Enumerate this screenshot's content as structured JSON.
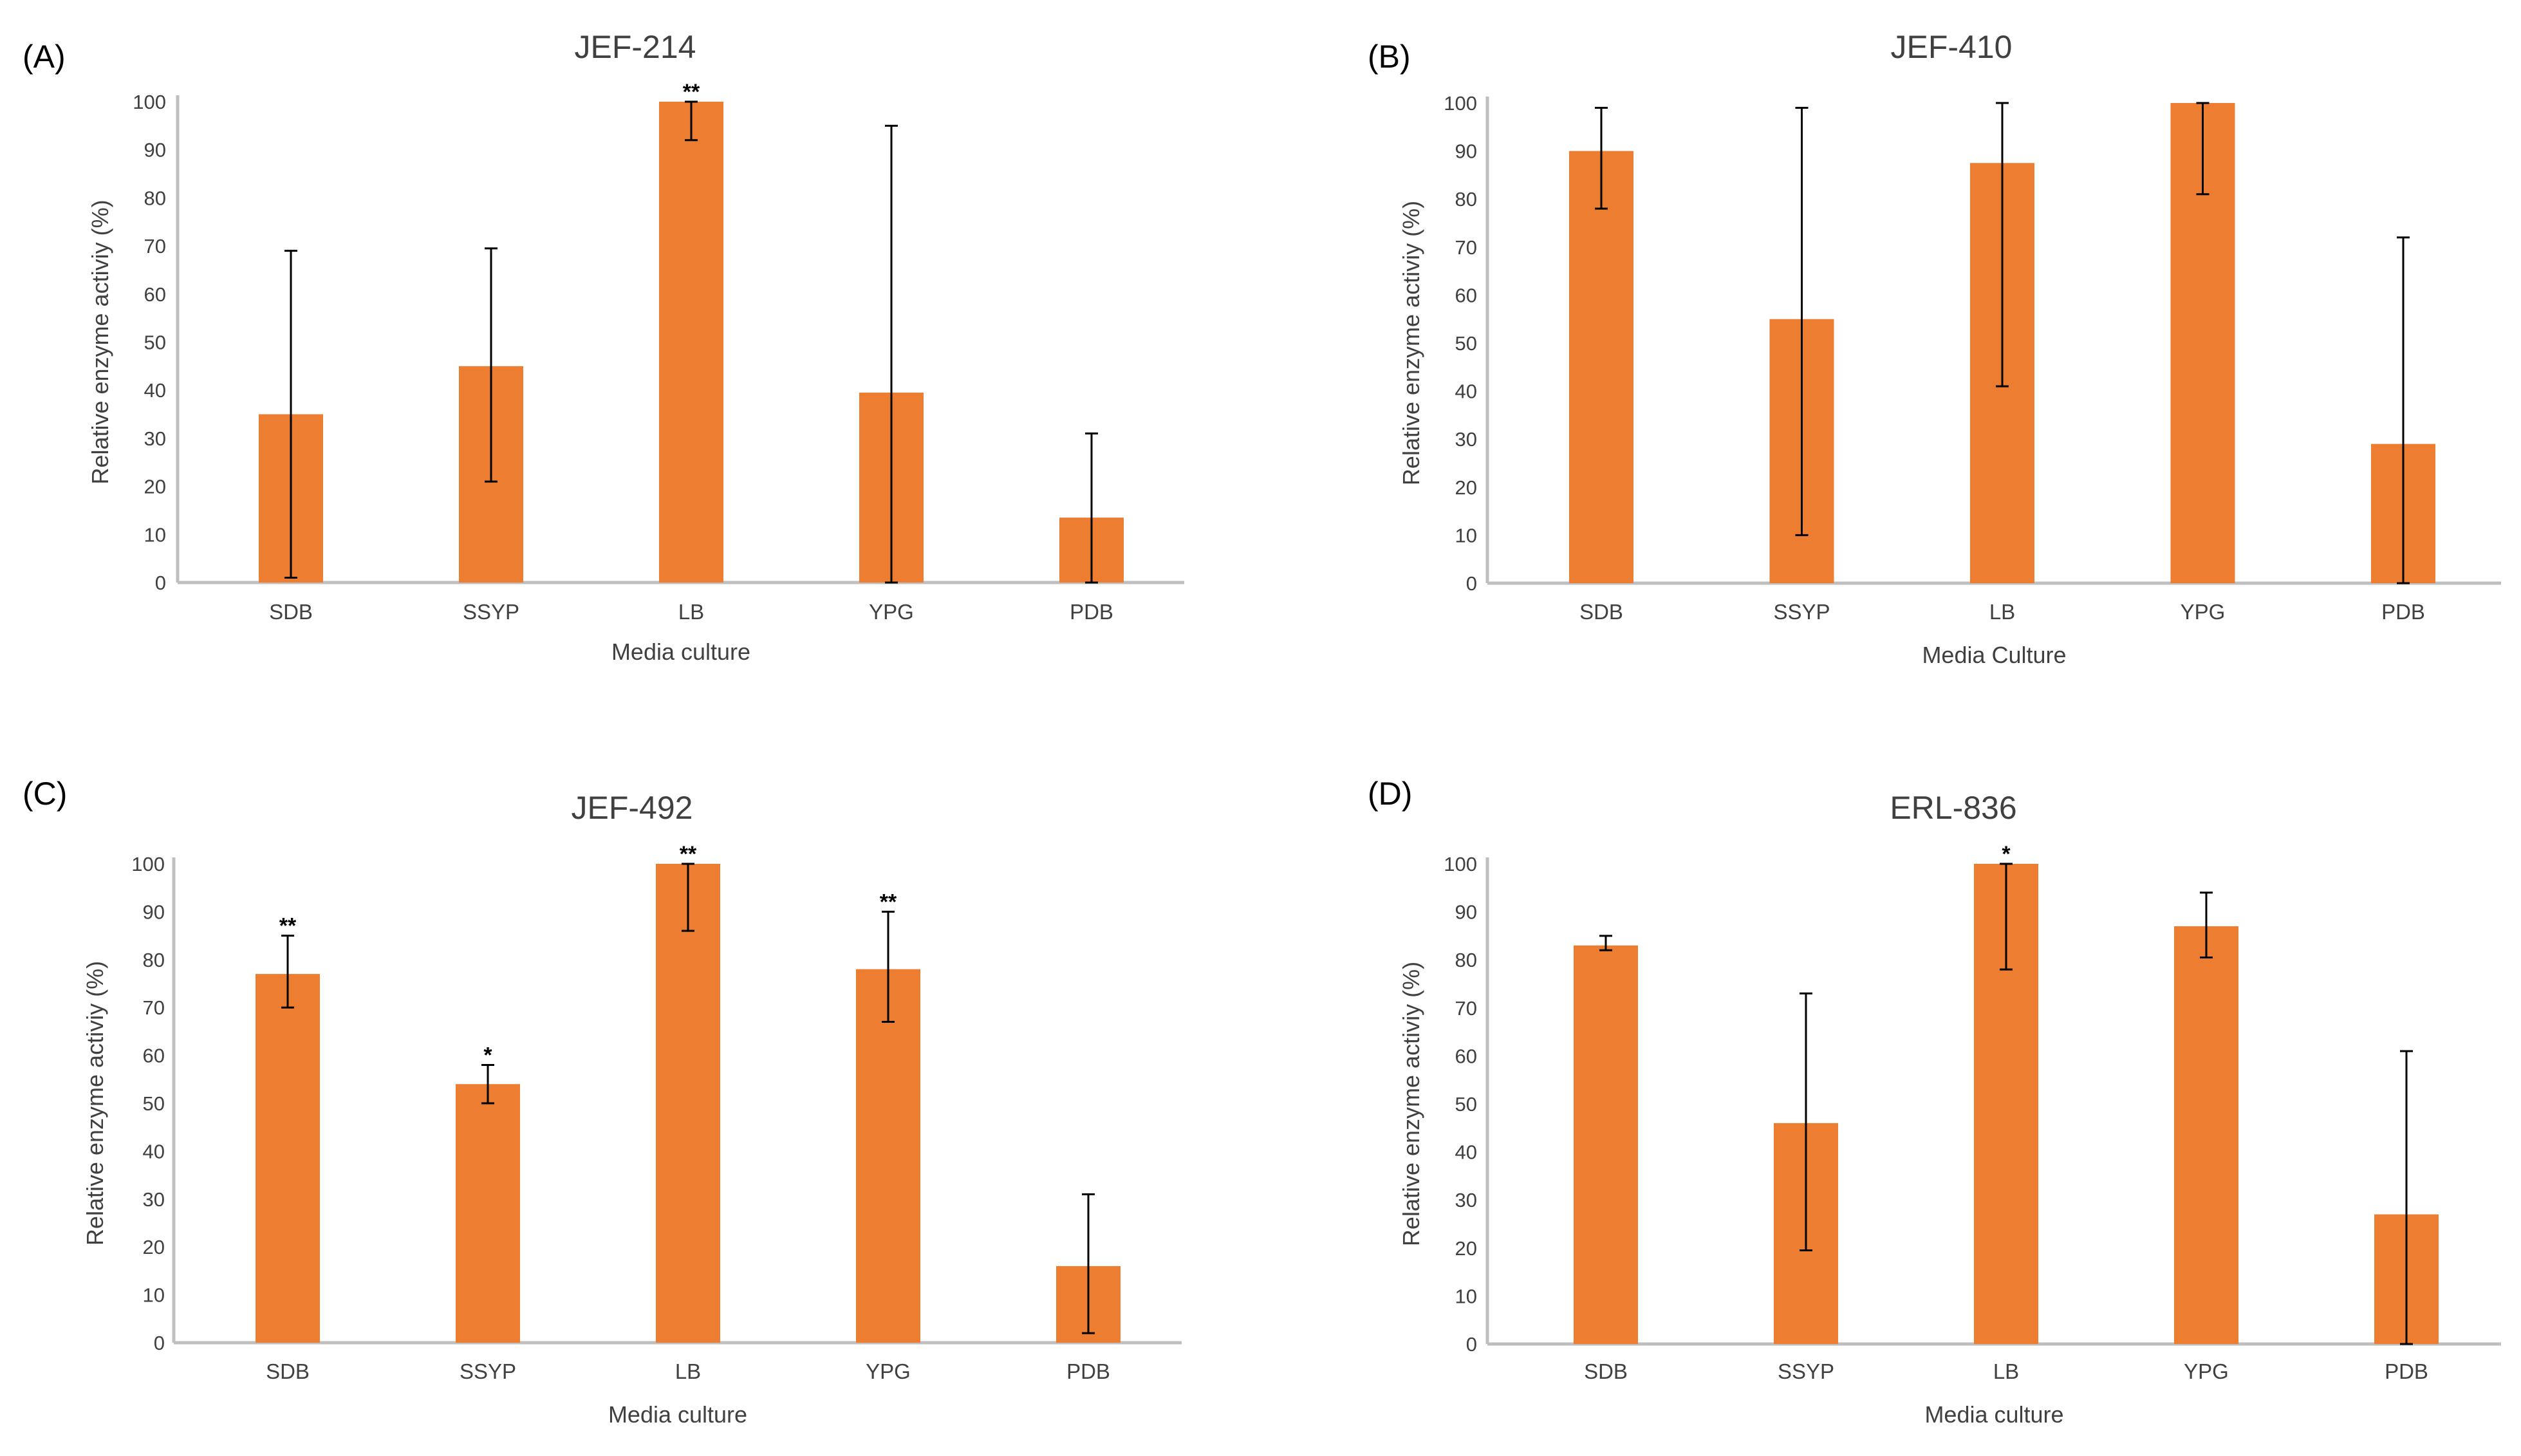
{
  "figure": {
    "bar_color": "#ED7D31",
    "axis_color": "#BFBFBF",
    "text_color": "#404040",
    "error_bar_color": "#000000"
  },
  "chart_data": [
    {
      "type": "bar",
      "panel": "(A)",
      "title": "JEF-214",
      "xlabel": "Media culture",
      "ylabel": "Relative enzyme activiy (%)",
      "ylim": [
        0,
        100
      ],
      "yticks": [
        0,
        10,
        20,
        30,
        40,
        50,
        60,
        70,
        80,
        90,
        100
      ],
      "grid": false,
      "categories": [
        "SDB",
        "SSYP",
        "LB",
        "YPG",
        "PDB"
      ],
      "values": [
        35,
        45,
        100,
        39.5,
        13.5
      ],
      "error_low": [
        1,
        21,
        92,
        0,
        0
      ],
      "error_high": [
        69,
        69.5,
        100,
        95,
        31
      ],
      "significance": [
        "",
        "",
        "**",
        "",
        ""
      ]
    },
    {
      "type": "bar",
      "panel": "(B)",
      "title": "JEF-410",
      "xlabel": "Media Culture",
      "ylabel": "Relative enzyme activiy (%)",
      "ylim": [
        0,
        100
      ],
      "yticks": [
        0,
        10,
        20,
        30,
        40,
        50,
        60,
        70,
        80,
        90,
        100
      ],
      "grid": false,
      "categories": [
        "SDB",
        "SSYP",
        "LB",
        "YPG",
        "PDB"
      ],
      "values": [
        90,
        55,
        87.5,
        100,
        29
      ],
      "error_low": [
        78,
        10,
        41,
        81,
        0
      ],
      "error_high": [
        99,
        99,
        100,
        100,
        72
      ],
      "significance": [
        "",
        "",
        "",
        "",
        ""
      ]
    },
    {
      "type": "bar",
      "panel": "(C)",
      "title": "JEF-492",
      "xlabel": "Media culture",
      "ylabel": "Relative enzyme activiy (%)",
      "ylim": [
        0,
        100
      ],
      "yticks": [
        0,
        10,
        20,
        30,
        40,
        50,
        60,
        70,
        80,
        90,
        100
      ],
      "grid": false,
      "categories": [
        "SDB",
        "SSYP",
        "LB",
        "YPG",
        "PDB"
      ],
      "values": [
        77,
        54,
        100,
        78,
        16
      ],
      "error_low": [
        70,
        50,
        86,
        67,
        2
      ],
      "error_high": [
        85,
        58,
        100,
        90,
        31
      ],
      "significance": [
        "**",
        "*",
        "**",
        "**",
        ""
      ]
    },
    {
      "type": "bar",
      "panel": "(D)",
      "title": "ERL-836",
      "xlabel": "Media culture",
      "ylabel": "Relative enzyme activiy (%)",
      "ylim": [
        0,
        100
      ],
      "yticks": [
        0,
        10,
        20,
        30,
        40,
        50,
        60,
        70,
        80,
        90,
        100
      ],
      "grid": false,
      "categories": [
        "SDB",
        "SSYP",
        "LB",
        "YPG",
        "PDB"
      ],
      "values": [
        83,
        46,
        100,
        87,
        27
      ],
      "error_low": [
        82,
        19.5,
        78,
        80.5,
        0
      ],
      "error_high": [
        85,
        73,
        100,
        94,
        61
      ],
      "significance": [
        "",
        "",
        "*",
        "",
        ""
      ]
    }
  ]
}
